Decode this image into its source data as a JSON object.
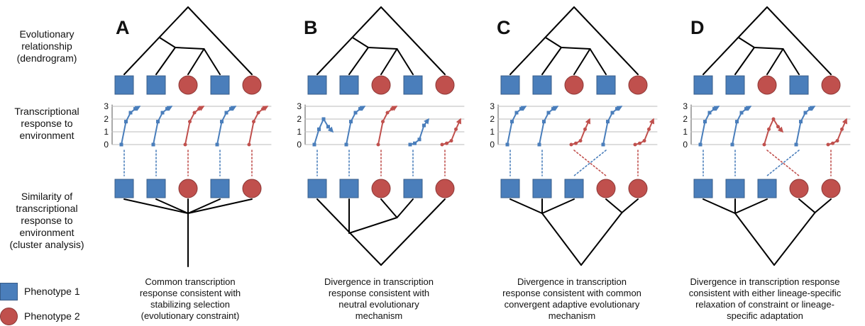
{
  "row_labels": {
    "relationship": [
      "Evolutionary",
      "relationship",
      "(dendrogram)"
    ],
    "response": [
      "Transcriptional",
      "response to",
      "environment"
    ],
    "similarity": [
      "Similarity of",
      "transcriptional",
      "response to",
      "environment",
      "(cluster analysis)"
    ]
  },
  "legend": [
    {
      "label": "Phenotype 1",
      "shape": "square",
      "color": "#4a7ebb"
    },
    {
      "label": "Phenotype 2",
      "shape": "circle",
      "color": "#c0504d"
    }
  ],
  "colors": {
    "blue": "#4a7ebb",
    "red": "#c0504d",
    "line": "#000000",
    "grid": "#bbbbbb"
  },
  "y_ticks": [
    "3",
    "2",
    "1",
    "0"
  ],
  "panels": [
    {
      "letter": "A",
      "caption": [
        "Common transcription",
        "response consistent with",
        "stabilizing selection",
        "(evolutionary constraint)"
      ],
      "top_shapes": [
        "square",
        "square",
        "circle",
        "square",
        "circle"
      ],
      "bottom_shapes": [
        "square",
        "square",
        "circle",
        "square",
        "circle"
      ],
      "series": [
        {
          "color": "blue",
          "values": [
            0,
            1.8,
            2.5,
            2.8,
            3
          ]
        },
        {
          "color": "blue",
          "values": [
            0,
            1.8,
            2.5,
            2.8,
            3
          ]
        },
        {
          "color": "red",
          "values": [
            0,
            1.8,
            2.5,
            2.8,
            3
          ]
        },
        {
          "color": "blue",
          "values": [
            0,
            1.8,
            2.5,
            2.8,
            3
          ]
        },
        {
          "color": "red",
          "values": [
            0,
            1.8,
            2.5,
            2.8,
            3
          ]
        }
      ],
      "cluster": "star"
    },
    {
      "letter": "B",
      "caption": [
        "Divergence in transcription",
        "response consistent with",
        "neutral evolutionary",
        "mechanism"
      ],
      "top_shapes": [
        "square",
        "square",
        "circle",
        "square",
        "circle"
      ],
      "bottom_shapes": [
        "square",
        "square",
        "circle",
        "square",
        "circle"
      ],
      "series": [
        {
          "color": "blue",
          "values": [
            0,
            1.2,
            2,
            1.4,
            1
          ]
        },
        {
          "color": "blue",
          "values": [
            0,
            1.8,
            2.5,
            2.8,
            3
          ]
        },
        {
          "color": "red",
          "values": [
            0,
            1.8,
            2.5,
            2.8,
            3
          ]
        },
        {
          "color": "blue",
          "values": [
            0,
            0.1,
            0.4,
            1.5,
            2
          ]
        },
        {
          "color": "red",
          "values": [
            0,
            0.1,
            0.3,
            1.2,
            2
          ]
        }
      ],
      "cluster": "phylo"
    },
    {
      "letter": "C",
      "caption": [
        "Divergence in transcription",
        "response consistent with common",
        "convergent adaptive evolutionary",
        "mechanism"
      ],
      "top_shapes": [
        "square",
        "square",
        "circle",
        "square",
        "circle"
      ],
      "bottom_shapes": [
        "square",
        "square",
        "square",
        "circle",
        "circle"
      ],
      "series": [
        {
          "color": "blue",
          "values": [
            0,
            1.8,
            2.5,
            2.8,
            3
          ]
        },
        {
          "color": "blue",
          "values": [
            0,
            1.8,
            2.5,
            2.8,
            3
          ]
        },
        {
          "color": "red",
          "values": [
            0,
            0.1,
            0.3,
            1.2,
            2
          ]
        },
        {
          "color": "blue",
          "values": [
            0,
            1.8,
            2.5,
            2.8,
            3
          ]
        },
        {
          "color": "red",
          "values": [
            0,
            0.1,
            0.3,
            1.2,
            2
          ]
        }
      ],
      "cluster": "split"
    },
    {
      "letter": "D",
      "caption": [
        "Divergence in transcription response",
        "consistent with either lineage-specific",
        "relaxation of constraint or lineage-",
        "specific adaptation"
      ],
      "top_shapes": [
        "square",
        "square",
        "circle",
        "square",
        "circle"
      ],
      "bottom_shapes": [
        "square",
        "square",
        "square",
        "circle",
        "circle"
      ],
      "series": [
        {
          "color": "blue",
          "values": [
            0,
            1.8,
            2.5,
            2.8,
            3
          ]
        },
        {
          "color": "blue",
          "values": [
            0,
            1.8,
            2.5,
            2.8,
            3
          ]
        },
        {
          "color": "red",
          "values": [
            0,
            1.2,
            2,
            1.4,
            1
          ]
        },
        {
          "color": "blue",
          "values": [
            0,
            1.8,
            2.5,
            2.8,
            3
          ]
        },
        {
          "color": "red",
          "values": [
            0,
            0.1,
            0.3,
            1.2,
            2
          ]
        }
      ],
      "cluster": "split"
    }
  ]
}
